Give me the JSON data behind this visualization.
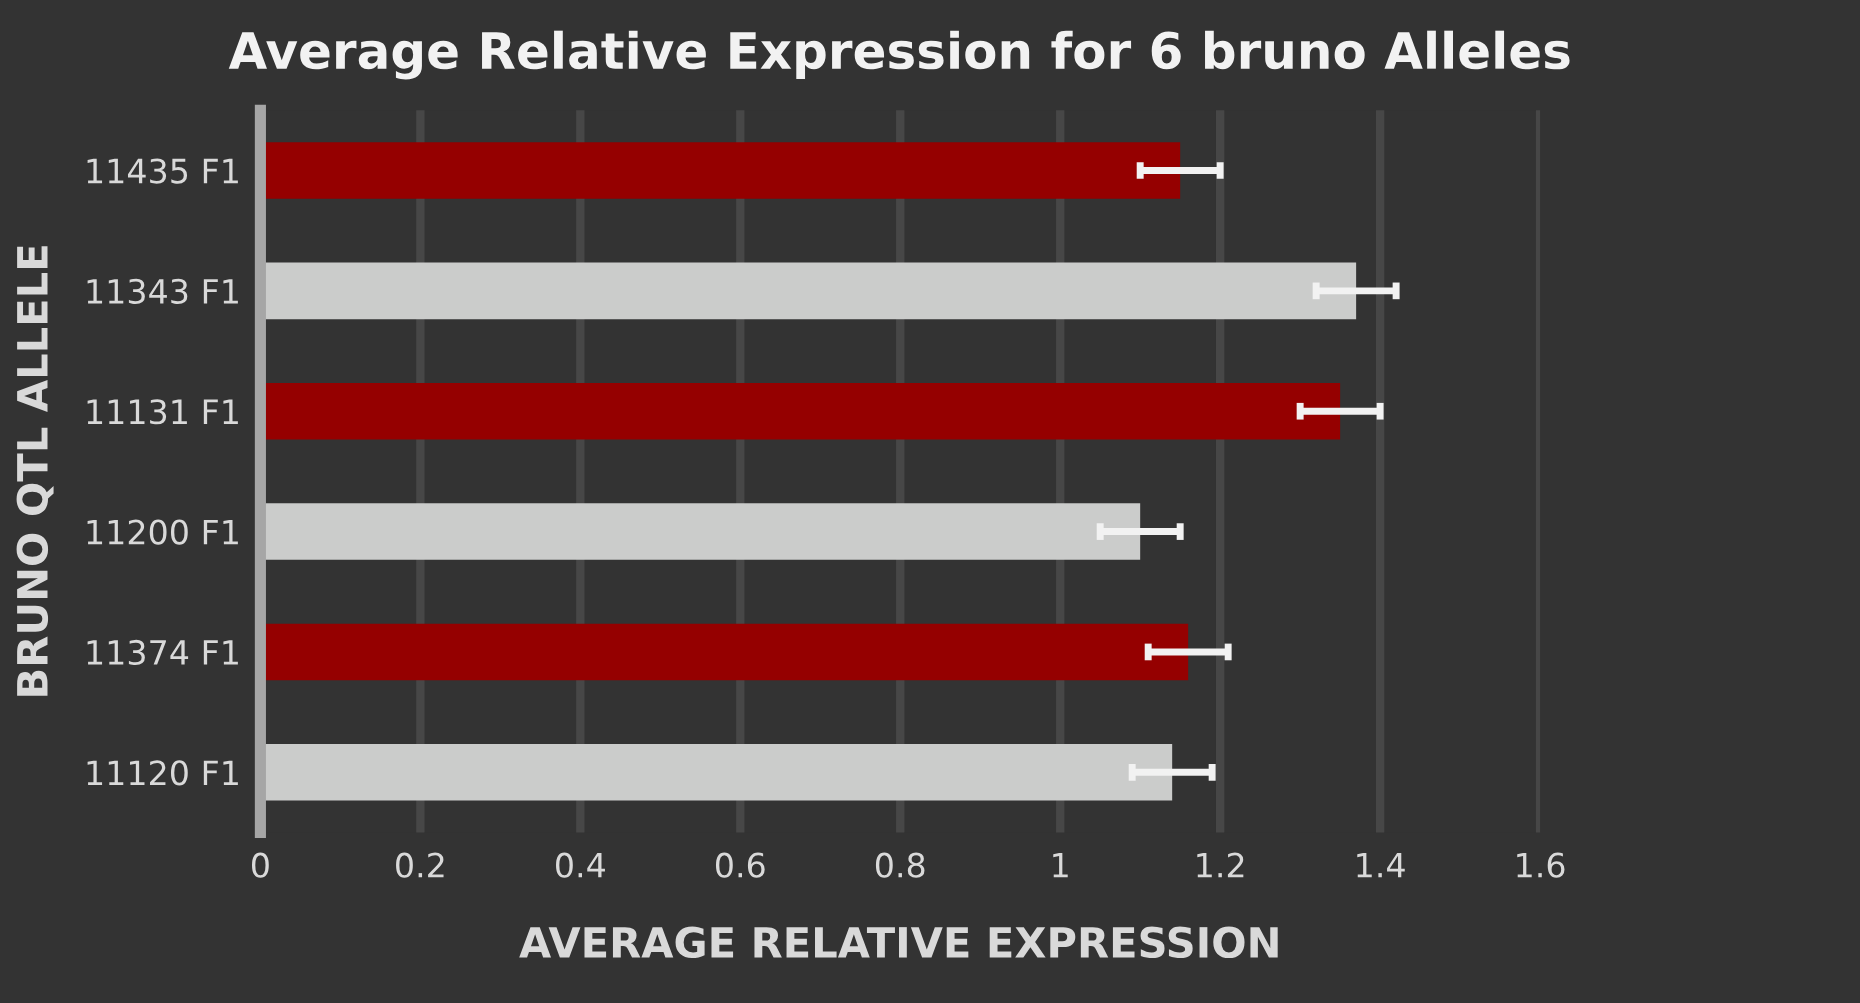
{
  "chart_data": {
    "type": "bar",
    "orientation": "horizontal",
    "title": "Average Relative Expression for 6 bruno Alleles",
    "xlabel": "AVERAGE RELATIVE EXPRESSION",
    "ylabel": "BRUNO QTL ALLELE",
    "categories": [
      "11435 F1",
      "11343 F1",
      "11131 F1",
      "11200 F1",
      "11374 F1",
      "11120 F1"
    ],
    "values": [
      1.15,
      1.37,
      1.35,
      1.1,
      1.16,
      1.14
    ],
    "errors": [
      0.05,
      0.05,
      0.05,
      0.05,
      0.05,
      0.05
    ],
    "colors": [
      "#950000",
      "#cbcccb",
      "#950000",
      "#cbcccb",
      "#950000",
      "#cbcccb"
    ],
    "xlim": [
      0,
      1.6
    ],
    "xticks": [
      0,
      0.2,
      0.4,
      0.6,
      0.8,
      1,
      1.2,
      1.4,
      1.6
    ],
    "grid": "x",
    "legend": false
  }
}
